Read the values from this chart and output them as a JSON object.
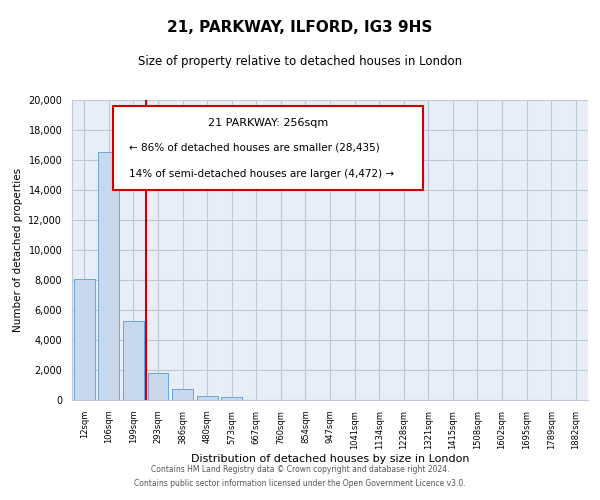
{
  "title": "21, PARKWAY, ILFORD, IG3 9HS",
  "subtitle": "Size of property relative to detached houses in London",
  "xlabel": "Distribution of detached houses by size in London",
  "ylabel": "Number of detached properties",
  "categories": [
    "12sqm",
    "106sqm",
    "199sqm",
    "293sqm",
    "386sqm",
    "480sqm",
    "573sqm",
    "667sqm",
    "760sqm",
    "854sqm",
    "947sqm",
    "1041sqm",
    "1134sqm",
    "1228sqm",
    "1321sqm",
    "1415sqm",
    "1508sqm",
    "1602sqm",
    "1695sqm",
    "1789sqm",
    "1882sqm"
  ],
  "values": [
    8100,
    16500,
    5300,
    1800,
    750,
    280,
    180,
    0,
    0,
    0,
    0,
    0,
    0,
    0,
    0,
    0,
    0,
    0,
    0,
    0,
    0
  ],
  "bar_color": "#c9d9ec",
  "bar_edge_color": "#5b9bd5",
  "highlight_color": "#cc0000",
  "highlight_index": 2,
  "annotation_title": "21 PARKWAY: 256sqm",
  "annotation_line1": "← 86% of detached houses are smaller (28,435)",
  "annotation_line2": "14% of semi-detached houses are larger (4,472) →",
  "ylim": [
    0,
    20000
  ],
  "yticks": [
    0,
    2000,
    4000,
    6000,
    8000,
    10000,
    12000,
    14000,
    16000,
    18000,
    20000
  ],
  "footer_line1": "Contains HM Land Registry data © Crown copyright and database right 2024.",
  "footer_line2": "Contains public sector information licensed under the Open Government Licence v3.0.",
  "plot_bg_color": "#e8eef7",
  "grid_color": "#c0c8d8",
  "fig_bg_color": "#ffffff"
}
